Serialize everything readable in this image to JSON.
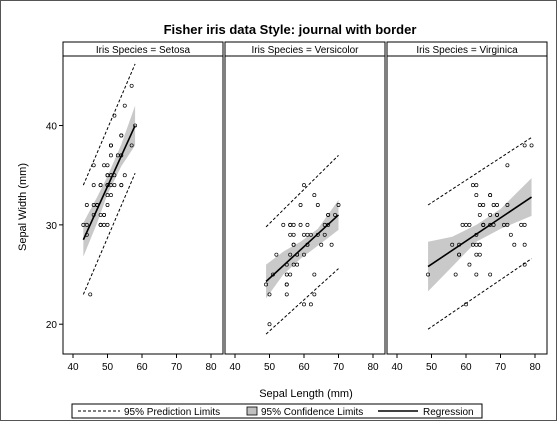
{
  "chart_data": {
    "type": "scatter",
    "title": "Fisher iris data Style: journal with border",
    "xlabel": "Sepal Length (mm)",
    "ylabel": "Sepal Width (mm)",
    "xlim": [
      40,
      80
    ],
    "ylim": [
      17,
      47
    ],
    "x_ticks": [
      40,
      50,
      60,
      70,
      80
    ],
    "y_ticks": [
      20,
      30,
      40
    ],
    "grid": false,
    "legend_position": "bottom",
    "panels": [
      {
        "label": "Iris Species = Setosa",
        "points": [
          [
            51,
            35
          ],
          [
            49,
            30
          ],
          [
            47,
            32
          ],
          [
            46,
            31
          ],
          [
            50,
            36
          ],
          [
            54,
            39
          ],
          [
            46,
            34
          ],
          [
            50,
            34
          ],
          [
            44,
            29
          ],
          [
            49,
            31
          ],
          [
            54,
            37
          ],
          [
            48,
            34
          ],
          [
            48,
            30
          ],
          [
            43,
            30
          ],
          [
            58,
            40
          ],
          [
            57,
            44
          ],
          [
            54,
            39
          ],
          [
            51,
            35
          ],
          [
            57,
            38
          ],
          [
            51,
            38
          ],
          [
            54,
            34
          ],
          [
            51,
            37
          ],
          [
            46,
            36
          ],
          [
            51,
            33
          ],
          [
            48,
            34
          ],
          [
            50,
            30
          ],
          [
            50,
            34
          ],
          [
            52,
            35
          ],
          [
            52,
            34
          ],
          [
            47,
            32
          ],
          [
            48,
            31
          ],
          [
            54,
            34
          ],
          [
            52,
            41
          ],
          [
            55,
            42
          ],
          [
            49,
            31
          ],
          [
            50,
            32
          ],
          [
            55,
            35
          ],
          [
            49,
            36
          ],
          [
            44,
            30
          ],
          [
            51,
            34
          ],
          [
            50,
            35
          ],
          [
            45,
            23
          ],
          [
            44,
            32
          ],
          [
            50,
            35
          ],
          [
            51,
            38
          ],
          [
            48,
            30
          ],
          [
            51,
            38
          ],
          [
            46,
            32
          ],
          [
            53,
            37
          ],
          [
            50,
            33
          ]
        ],
        "regression": {
          "x": [
            43,
            58
          ],
          "y": [
            28.5,
            40.0
          ]
        },
        "confidence_upper": [
          [
            43,
            30.2
          ],
          [
            47,
            32.8
          ],
          [
            50,
            34.9
          ],
          [
            54,
            38.1
          ],
          [
            58,
            42.0
          ]
        ],
        "confidence_lower": [
          [
            43,
            26.8
          ],
          [
            47,
            30.2
          ],
          [
            50,
            33.1
          ],
          [
            54,
            35.9
          ],
          [
            58,
            38.0
          ]
        ],
        "prediction_upper": [
          [
            43,
            34.0
          ],
          [
            58,
            46.2
          ]
        ],
        "prediction_lower": [
          [
            43,
            23.0
          ],
          [
            58,
            35.2
          ]
        ]
      },
      {
        "label": "Iris Species = Versicolor",
        "points": [
          [
            70,
            32
          ],
          [
            64,
            32
          ],
          [
            69,
            31
          ],
          [
            55,
            23
          ],
          [
            65,
            28
          ],
          [
            57,
            28
          ],
          [
            63,
            33
          ],
          [
            49,
            24
          ],
          [
            66,
            29
          ],
          [
            52,
            27
          ],
          [
            50,
            20
          ],
          [
            59,
            30
          ],
          [
            60,
            22
          ],
          [
            61,
            29
          ],
          [
            56,
            29
          ],
          [
            67,
            31
          ],
          [
            56,
            30
          ],
          [
            58,
            27
          ],
          [
            62,
            22
          ],
          [
            56,
            25
          ],
          [
            59,
            32
          ],
          [
            61,
            28
          ],
          [
            63,
            25
          ],
          [
            61,
            28
          ],
          [
            64,
            29
          ],
          [
            66,
            30
          ],
          [
            68,
            28
          ],
          [
            67,
            30
          ],
          [
            60,
            29
          ],
          [
            57,
            26
          ],
          [
            55,
            24
          ],
          [
            55,
            24
          ],
          [
            58,
            27
          ],
          [
            60,
            27
          ],
          [
            54,
            30
          ],
          [
            60,
            34
          ],
          [
            67,
            31
          ],
          [
            63,
            23
          ],
          [
            56,
            30
          ],
          [
            55,
            25
          ],
          [
            55,
            26
          ],
          [
            61,
            30
          ],
          [
            58,
            26
          ],
          [
            50,
            23
          ],
          [
            56,
            27
          ],
          [
            57,
            30
          ],
          [
            57,
            29
          ],
          [
            62,
            29
          ],
          [
            51,
            25
          ],
          [
            57,
            28
          ]
        ],
        "regression": {
          "x": [
            49,
            70
          ],
          "y": [
            24.3,
            31.0
          ]
        },
        "confidence_upper": [
          [
            49,
            26.0
          ],
          [
            54,
            27.3
          ],
          [
            59,
            28.3
          ],
          [
            64,
            29.6
          ],
          [
            70,
            32.5
          ]
        ],
        "confidence_lower": [
          [
            49,
            22.6
          ],
          [
            54,
            25.0
          ],
          [
            59,
            26.6
          ],
          [
            64,
            27.9
          ],
          [
            70,
            29.5
          ]
        ],
        "prediction_upper": [
          [
            49,
            29.8
          ],
          [
            70,
            37.0
          ]
        ],
        "prediction_lower": [
          [
            49,
            19.0
          ],
          [
            70,
            25.6
          ]
        ]
      },
      {
        "label": "Iris Species = Virginica",
        "points": [
          [
            63,
            33
          ],
          [
            58,
            27
          ],
          [
            71,
            30
          ],
          [
            63,
            29
          ],
          [
            65,
            30
          ],
          [
            76,
            30
          ],
          [
            49,
            25
          ],
          [
            73,
            29
          ],
          [
            67,
            25
          ],
          [
            72,
            36
          ],
          [
            65,
            32
          ],
          [
            64,
            27
          ],
          [
            68,
            30
          ],
          [
            57,
            25
          ],
          [
            58,
            28
          ],
          [
            64,
            32
          ],
          [
            65,
            30
          ],
          [
            77,
            38
          ],
          [
            77,
            26
          ],
          [
            60,
            22
          ],
          [
            69,
            32
          ],
          [
            56,
            28
          ],
          [
            77,
            28
          ],
          [
            63,
            27
          ],
          [
            67,
            33
          ],
          [
            72,
            32
          ],
          [
            62,
            28
          ],
          [
            61,
            30
          ],
          [
            64,
            28
          ],
          [
            72,
            30
          ],
          [
            74,
            28
          ],
          [
            79,
            38
          ],
          [
            64,
            28
          ],
          [
            63,
            28
          ],
          [
            61,
            26
          ],
          [
            77,
            30
          ],
          [
            63,
            34
          ],
          [
            64,
            31
          ],
          [
            60,
            30
          ],
          [
            69,
            31
          ],
          [
            67,
            31
          ],
          [
            69,
            31
          ],
          [
            58,
            27
          ],
          [
            68,
            32
          ],
          [
            67,
            33
          ],
          [
            67,
            30
          ],
          [
            63,
            25
          ],
          [
            65,
            30
          ],
          [
            62,
            34
          ],
          [
            59,
            30
          ]
        ],
        "regression": {
          "x": [
            49,
            79
          ],
          "y": [
            25.8,
            32.8
          ]
        },
        "confidence_upper": [
          [
            49,
            28.3
          ],
          [
            56,
            28.8
          ],
          [
            63,
            30.0
          ],
          [
            70,
            31.6
          ],
          [
            79,
            34.7
          ]
        ],
        "confidence_lower": [
          [
            49,
            23.3
          ],
          [
            56,
            25.8
          ],
          [
            63,
            28.3
          ],
          [
            70,
            29.6
          ],
          [
            79,
            30.9
          ]
        ],
        "prediction_upper": [
          [
            49,
            32.0
          ],
          [
            79,
            38.8
          ]
        ],
        "prediction_lower": [
          [
            49,
            19.5
          ],
          [
            79,
            26.6
          ]
        ]
      }
    ],
    "legend": [
      {
        "key": "prediction",
        "label": "95% Prediction Limits"
      },
      {
        "key": "confidence",
        "label": "95% Confidence Limits"
      },
      {
        "key": "regression",
        "label": "Regression"
      }
    ],
    "colors": {
      "band": "#c9c9c9",
      "line": "#000000",
      "frame": "#000000",
      "header_bg": "#ffffff",
      "legend_swatch": "#c0c0c0"
    }
  }
}
